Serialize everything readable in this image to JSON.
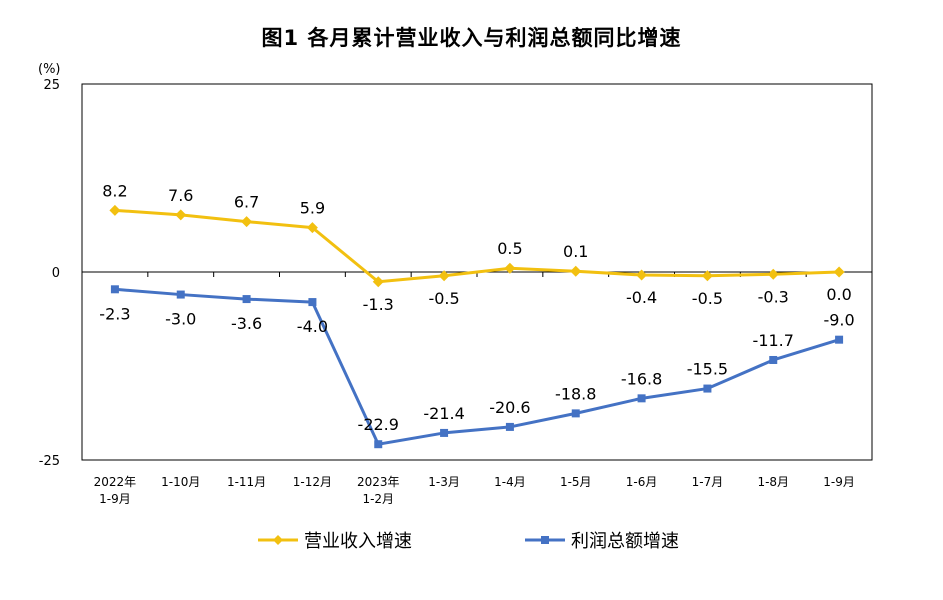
{
  "title": "图1  各月累计营业收入与利润总额同比增速",
  "chart_data": {
    "type": "line",
    "title": "图1  各月累计营业收入与利润总额同比增速",
    "ylabel": "(%)",
    "ylim": [
      -25,
      25
    ],
    "yticks": [
      25,
      0,
      -25
    ],
    "categories": [
      [
        "2022年",
        "1-9月"
      ],
      [
        "1-10月"
      ],
      [
        "1-11月"
      ],
      [
        "1-12月"
      ],
      [
        "2023年",
        "1-2月"
      ],
      [
        "1-3月"
      ],
      [
        "1-4月"
      ],
      [
        "1-5月"
      ],
      [
        "1-6月"
      ],
      [
        "1-7月"
      ],
      [
        "1-8月"
      ],
      [
        "1-9月"
      ]
    ],
    "series": [
      {
        "name": "营业收入增速",
        "color": "#F2C010",
        "marker": "diamond",
        "values": [
          8.2,
          7.6,
          6.7,
          5.9,
          -1.3,
          -0.5,
          0.5,
          0.1,
          -0.4,
          -0.5,
          -0.3,
          0.0
        ],
        "labels": [
          "8.2",
          "7.6",
          "6.7",
          "5.9",
          "-1.3",
          "-0.5",
          "0.5",
          "0.1",
          "-0.4",
          "-0.5",
          "-0.3",
          "0.0"
        ]
      },
      {
        "name": "利润总额增速",
        "color": "#4472C4",
        "marker": "square",
        "values": [
          -2.3,
          -3.0,
          -3.6,
          -4.0,
          -22.9,
          -21.4,
          -20.6,
          -18.8,
          -16.8,
          -15.5,
          -11.7,
          -9.0
        ],
        "labels": [
          "-2.3",
          "-3.0",
          "-3.6",
          "-4.0",
          "-22.9",
          "-21.4",
          "-20.6",
          "-18.8",
          "-16.8",
          "-15.5",
          "-11.7",
          "-9.0"
        ]
      }
    ],
    "grid": false,
    "legend_position": "bottom"
  }
}
